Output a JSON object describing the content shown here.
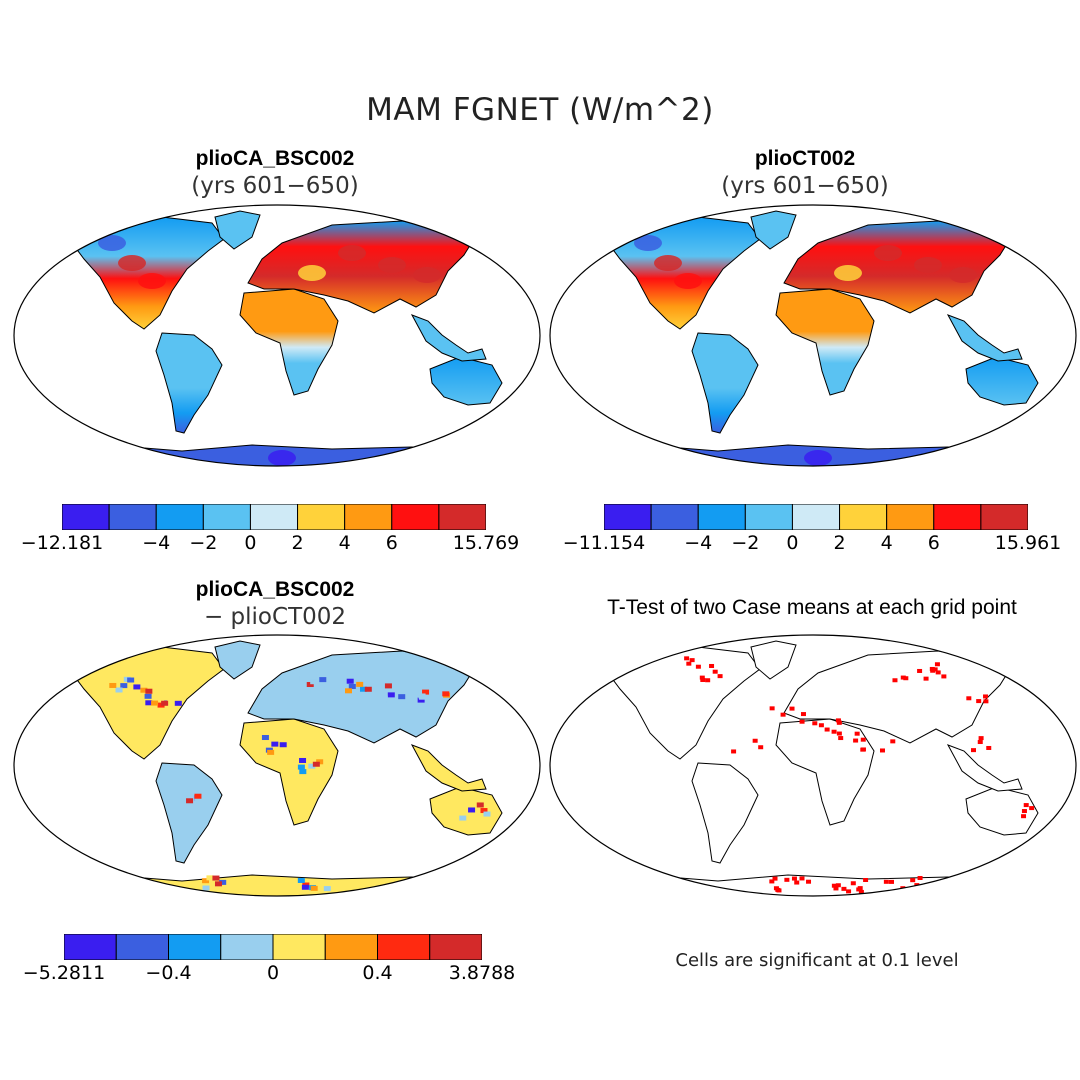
{
  "figure": {
    "title": "MAM FGNET (W/m^2)",
    "colors": {
      "land_fill": "#ffffff",
      "outline": "#000000",
      "significant": "#ff0000"
    }
  },
  "panels": [
    {
      "id": "top-left",
      "title": "plioCA_BSC002",
      "subtitle": "(yrs 601−650)",
      "colorbar": {
        "colors": [
          "#3a1ef0",
          "#3b5fe0",
          "#139cf2",
          "#5ac2f2",
          "#cfeaf6",
          "#ffd23a",
          "#ff9a12",
          "#ff1010",
          "#d42a2a"
        ],
        "labels": [
          {
            "text": "−12.181",
            "index": 0
          },
          {
            "text": "−4",
            "index": 2
          },
          {
            "text": "−2",
            "index": 3
          },
          {
            "text": "0",
            "index": 4
          },
          {
            "text": "2",
            "index": 5
          },
          {
            "text": "4",
            "index": 6
          },
          {
            "text": "6",
            "index": 7
          },
          {
            "text": "15.769",
            "index": 9
          }
        ]
      }
    },
    {
      "id": "top-right",
      "title": "plioCT002",
      "subtitle": "(yrs 601−650)",
      "colorbar": {
        "colors": [
          "#3a1ef0",
          "#3b5fe0",
          "#139cf2",
          "#5ac2f2",
          "#cfeaf6",
          "#ffd23a",
          "#ff9a12",
          "#ff1010",
          "#d42a2a"
        ],
        "labels": [
          {
            "text": "−11.154",
            "index": 0
          },
          {
            "text": "−4",
            "index": 2
          },
          {
            "text": "−2",
            "index": 3
          },
          {
            "text": "0",
            "index": 4
          },
          {
            "text": "2",
            "index": 5
          },
          {
            "text": "4",
            "index": 6
          },
          {
            "text": "6",
            "index": 7
          },
          {
            "text": "15.961",
            "index": 9
          }
        ]
      }
    },
    {
      "id": "bottom-left",
      "title": "plioCA_BSC002",
      "subtitle": "− plioCT002",
      "colorbar": {
        "colors": [
          "#3a1ef0",
          "#3b5fe0",
          "#139cf2",
          "#99cfee",
          "#ffe860",
          "#ff9a12",
          "#ff2a10",
          "#d42a2a"
        ],
        "labels": [
          {
            "text": "−5.2811",
            "index": 0
          },
          {
            "text": "−0.4",
            "index": 2
          },
          {
            "text": "0",
            "index": 4
          },
          {
            "text": "0.4",
            "index": 6
          },
          {
            "text": "3.8788",
            "index": 8
          }
        ]
      }
    },
    {
      "id": "bottom-right",
      "title": "T-Test of two Case means at each grid point",
      "note": "Cells are significant at 0.1 level"
    }
  ]
}
